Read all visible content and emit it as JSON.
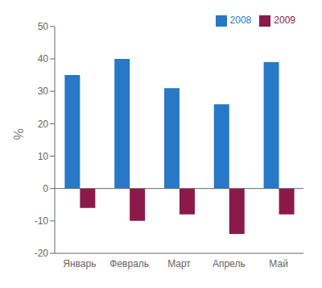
{
  "chart_data": {
    "type": "bar",
    "categories": [
      "Январь",
      "Февраль",
      "Март",
      "Апрель",
      "Май"
    ],
    "series": [
      {
        "name": "2008",
        "color": "#2878c8",
        "values": [
          35,
          40,
          31,
          26,
          39
        ]
      },
      {
        "name": "2009",
        "color": "#8b1a4a",
        "values": [
          -6,
          -10,
          -8,
          -14,
          -8
        ]
      }
    ],
    "ylabel": "%",
    "ylim": [
      -20,
      50
    ],
    "yticks": [
      -20,
      -10,
      0,
      10,
      20,
      30,
      40,
      50
    ],
    "grid": false,
    "legend": "upper right"
  }
}
